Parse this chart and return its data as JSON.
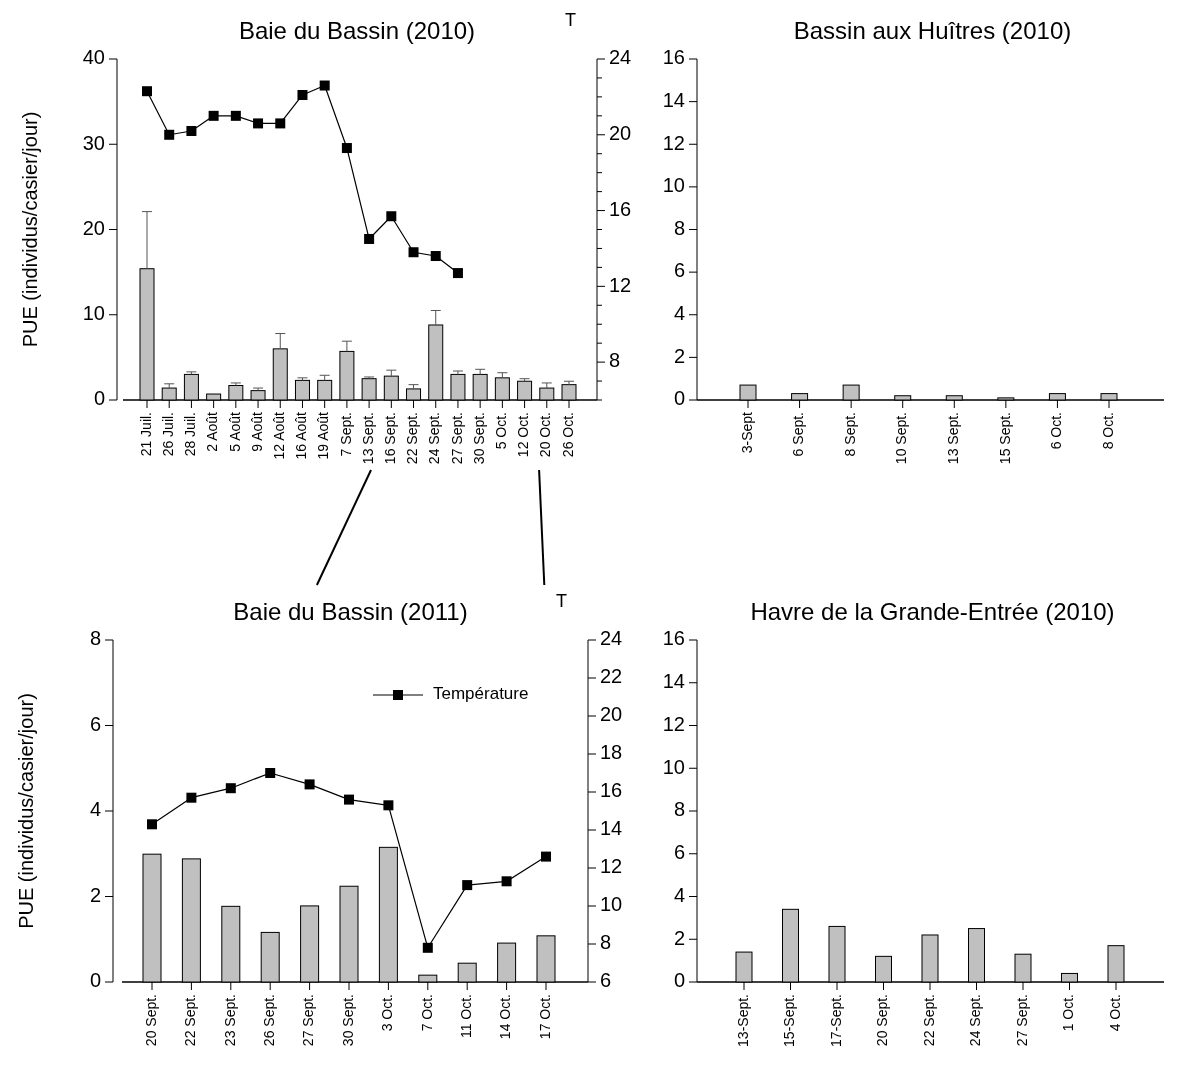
{
  "chart_data": [
    {
      "type": "bar",
      "title": "Baie du Bassin (2010)",
      "ylabel": "PUE (individus/casier/jour)",
      "y2label": "T",
      "categories": [
        "21 Juil.",
        "26 Juil.",
        "28 Juil.",
        "2 Août",
        "5 Août",
        "9 Août",
        "12 Août",
        "16 Août",
        "19 Août",
        "7 Sept.",
        "13 Sept.",
        "16 Sept.",
        "22 Sept.",
        "24 Sept.",
        "27 Sept.",
        "30 Sept.",
        "5 Oct.",
        "12 Oct.",
        "20 Oct.",
        "26 Oct."
      ],
      "ylim": [
        0,
        40
      ],
      "yticks": [
        0,
        10,
        20,
        30,
        40
      ],
      "y2lim": [
        6,
        24
      ],
      "y2ticks": [
        {
          "value": 6,
          "label": null
        },
        {
          "value": 7,
          "label": null
        },
        8,
        {
          "value": 9,
          "label": null
        },
        {
          "value": 10,
          "label": null
        },
        {
          "value": 11,
          "label": null
        },
        12,
        {
          "value": 13,
          "label": null
        },
        {
          "value": 14,
          "label": null
        },
        {
          "value": 15,
          "label": null
        },
        16,
        {
          "value": 17,
          "label": null
        },
        {
          "value": 18,
          "label": null
        },
        {
          "value": 19,
          "label": null
        },
        20,
        {
          "value": 21,
          "label": null
        },
        {
          "value": 22,
          "label": null
        },
        {
          "value": 23,
          "label": null
        },
        24
      ],
      "series": [
        {
          "color": "#c0c0c0",
          "values": [
            15.4,
            1.4,
            3.0,
            0.7,
            1.7,
            1.1,
            6.0,
            2.3,
            2.3,
            5.7,
            2.5,
            2.8,
            1.3,
            8.8,
            3.0,
            3.0,
            2.6,
            2.2,
            1.4,
            1.8
          ],
          "errors": [
            [
              15.4,
              22.1
            ],
            [
              1.4,
              1.9
            ],
            [
              3.0,
              3.3
            ],
            null,
            [
              1.7,
              2.0
            ],
            [
              1.1,
              1.4
            ],
            [
              6.0,
              7.8
            ],
            [
              2.3,
              2.6
            ],
            [
              2.3,
              2.9
            ],
            [
              5.7,
              6.9
            ],
            [
              2.5,
              2.7
            ],
            [
              2.8,
              3.5
            ],
            [
              1.3,
              1.8
            ],
            [
              8.8,
              10.5
            ],
            [
              3.0,
              3.4
            ],
            [
              3.0,
              3.6
            ],
            [
              2.6,
              3.2
            ],
            [
              2.2,
              2.5
            ],
            [
              1.4,
              2.0
            ],
            [
              1.8,
              2.2
            ]
          ]
        },
        {
          "type": "line",
          "axis": "y2",
          "color": "#000000",
          "marker": "square",
          "values": [
            22.3,
            20.0,
            20.2,
            21.0,
            21.0,
            20.6,
            20.6,
            22.1,
            22.6,
            19.3,
            14.5,
            15.7,
            13.8,
            13.6,
            12.7,
            null,
            null,
            null,
            null,
            null
          ]
        }
      ]
    },
    {
      "type": "bar",
      "title": "Bassin aux Huîtres (2010)",
      "categories": [
        "3-Sept",
        "6 Sept.",
        "8 Sept.",
        "10 Sept.",
        "13 Sept.",
        "15 Sept.",
        "6 Oct.",
        "8 Oct."
      ],
      "values": [
        0.7,
        0.3,
        0.7,
        0.2,
        0.2,
        0.1,
        0.3,
        0.3
      ],
      "color": "#c0c0c0",
      "ylim": [
        0,
        16
      ],
      "yticks": [
        0,
        2,
        4,
        6,
        8,
        10,
        12,
        14,
        16
      ]
    },
    {
      "type": "bar",
      "title": "Baie du Bassin (2011)",
      "ylabel": "PUE (individus/casier/jour)",
      "y2label": "T",
      "legend": "top right",
      "categories": [
        "20 Sept.",
        "22 Sept.",
        "23 Sept.",
        "26 Sept.",
        "27 Sept.",
        "30 Sept.",
        "3 Oct.",
        "7 Oct.",
        "11 Oct.",
        "14 Oct.",
        "17 Oct."
      ],
      "ylim": [
        0,
        8
      ],
      "yticks": [
        0,
        2,
        4,
        6,
        8
      ],
      "y2lim": [
        6,
        24
      ],
      "y2ticks": [
        6,
        8,
        10,
        12,
        14,
        16,
        18,
        20,
        22,
        24
      ],
      "series": [
        {
          "color": "#c0c0c0",
          "values": [
            2.99,
            2.88,
            1.77,
            1.16,
            1.78,
            2.24,
            3.15,
            0.16,
            0.44,
            0.91,
            1.08
          ]
        },
        {
          "type": "line",
          "axis": "y2",
          "name": "Température",
          "color": "#000000",
          "marker": "square",
          "values": [
            14.3,
            15.7,
            16.2,
            17.0,
            16.4,
            15.6,
            15.3,
            7.8,
            11.1,
            11.3,
            12.6
          ]
        }
      ]
    },
    {
      "type": "bar",
      "title": "Havre de la Grande-Entrée (2010)",
      "categories": [
        "13-Sept.",
        "15-Sept.",
        "17-Sept.",
        "20 Sept.",
        "22 Sept.",
        "24 Sept.",
        "27 Sept.",
        "1 Oct.",
        "4 Oct."
      ],
      "values": [
        1.4,
        3.4,
        2.6,
        1.2,
        2.2,
        2.5,
        1.3,
        0.4,
        1.7
      ],
      "color": "#c0c0c0",
      "ylim": [
        0,
        16
      ],
      "yticks": [
        0,
        2,
        4,
        6,
        8,
        10,
        12,
        14,
        16
      ]
    }
  ]
}
